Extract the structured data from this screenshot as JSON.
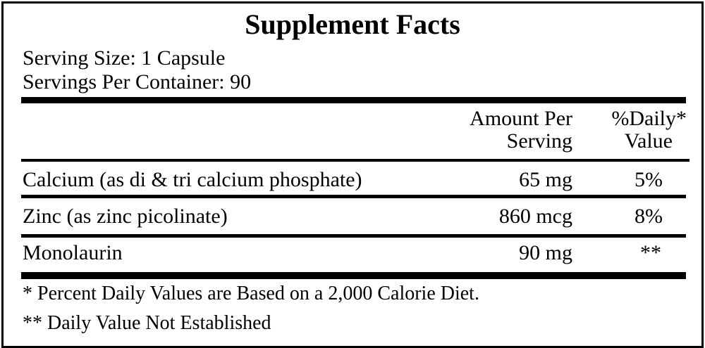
{
  "title": "Supplement Facts",
  "serving_size": "Serving Size: 1 Capsule",
  "servings_per_container": "Servings Per Container: 90",
  "header": {
    "amount_line1": "Amount Per",
    "amount_line2": "Serving",
    "dv_line1": "%Daily*",
    "dv_line2": "Value"
  },
  "rows": [
    {
      "name": "Calcium (as di & tri calcium phosphate)",
      "amount": "65 mg",
      "dv": "5%"
    },
    {
      "name": "Zinc (as zinc picolinate)",
      "amount": "860 mcg",
      "dv": "8%"
    },
    {
      "name": "Monolaurin",
      "amount": "90 mg",
      "dv": "**"
    }
  ],
  "footnotes": [
    "* Percent Daily Values are Based on a 2,000 Calorie Diet.",
    "** Daily Value Not Established"
  ]
}
